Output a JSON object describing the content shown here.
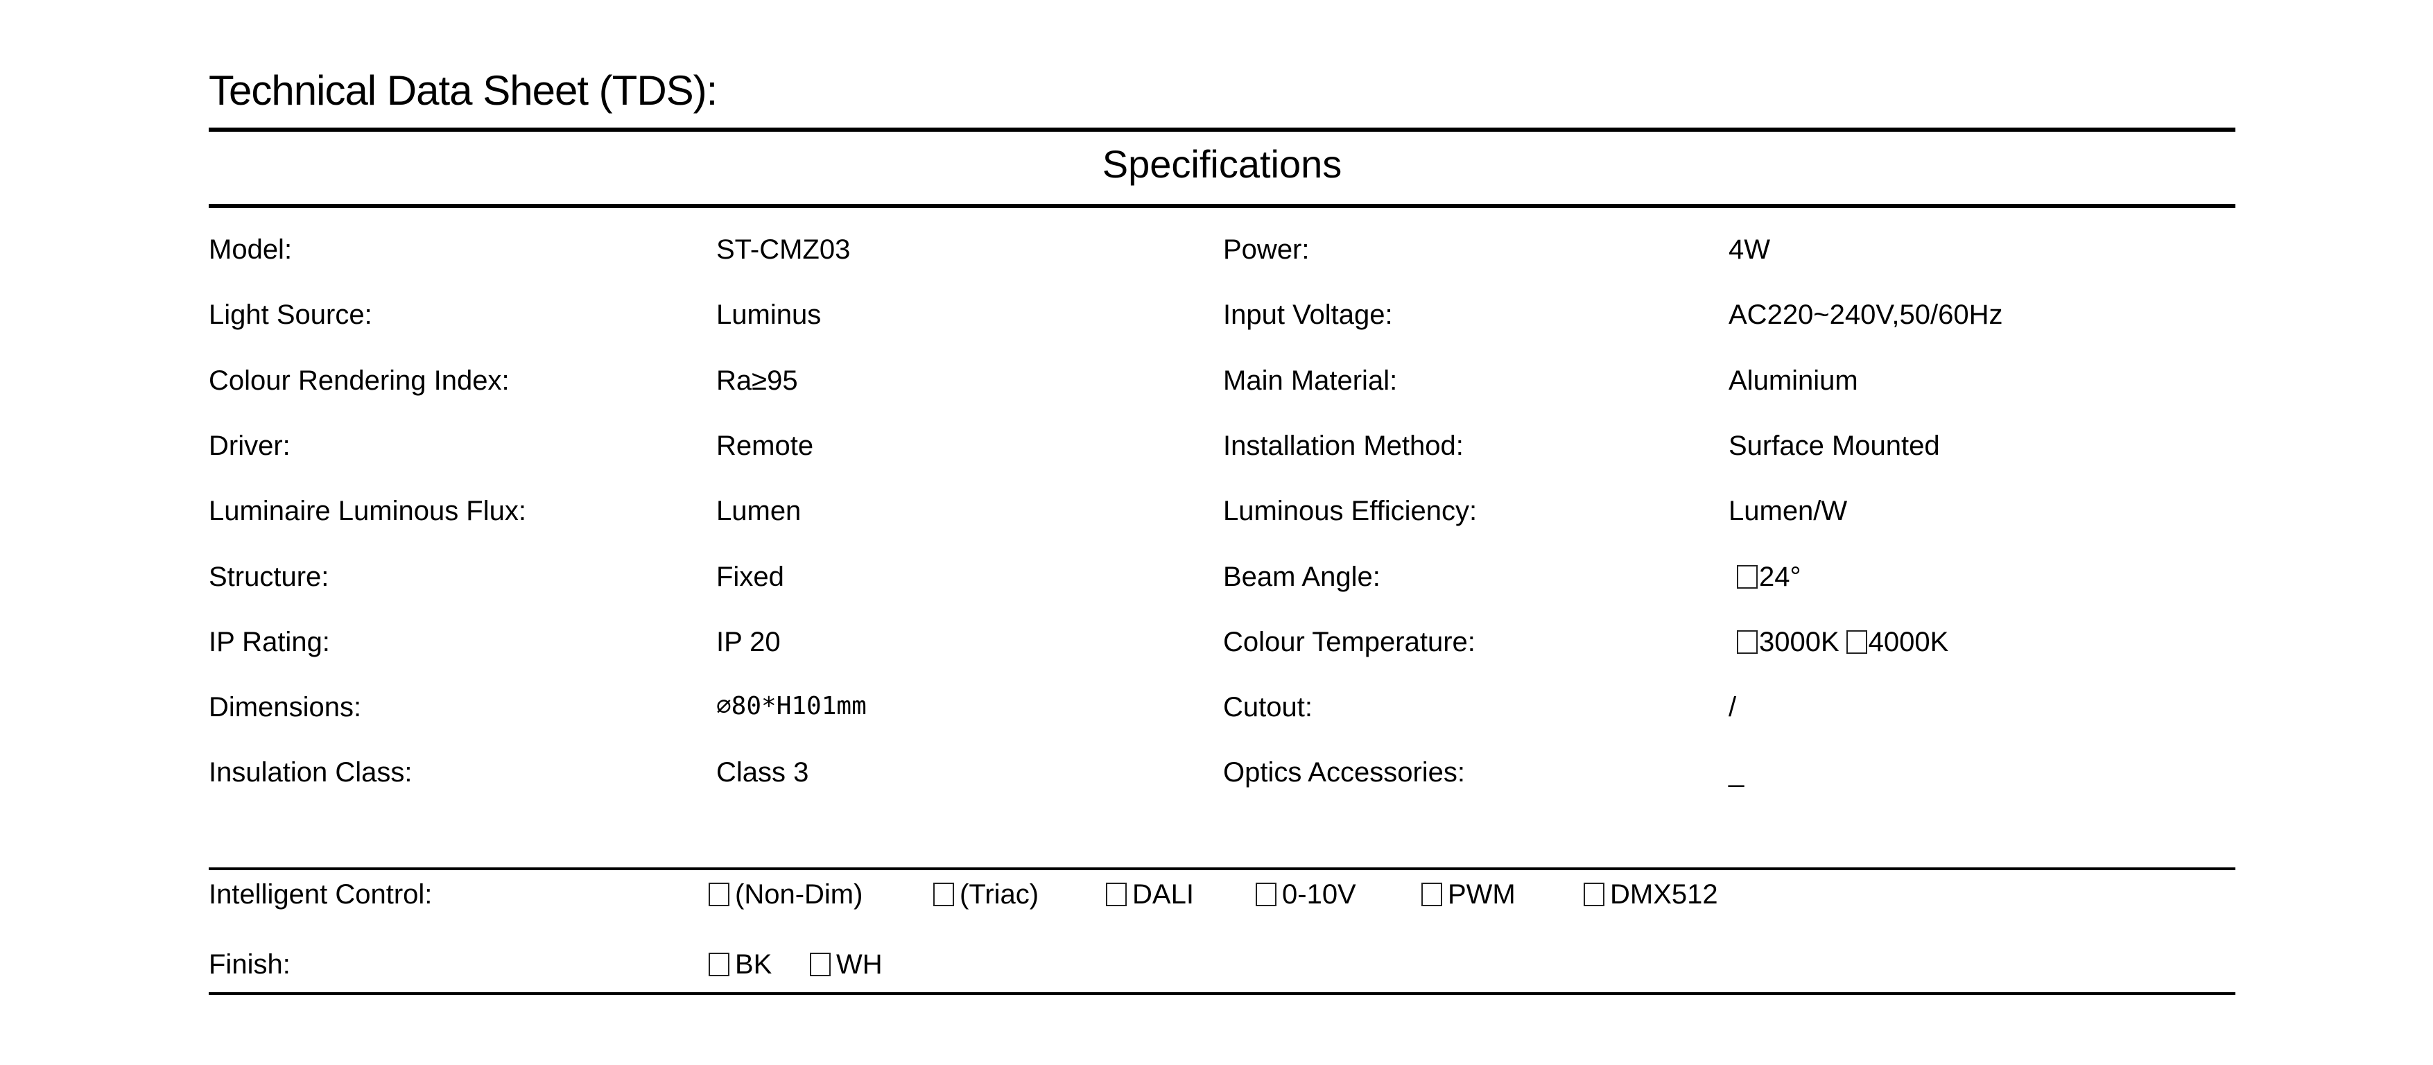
{
  "title": "Technical Data Sheet (TDS):",
  "section_heading": "Specifications",
  "specs": [
    {
      "label": "Model:",
      "value": "ST-CMZ03",
      "label2": "Power:",
      "value2": "4W"
    },
    {
      "label": "Light Source:",
      "value": "Luminus",
      "label2": "Input Voltage:",
      "value2": "AC220~240V,50/60Hz"
    },
    {
      "label": "Colour Rendering Index:",
      "value": "Ra≥95",
      "label2": "Main Material:",
      "value2": "Aluminium"
    },
    {
      "label": "Driver:",
      "value": "Remote",
      "label2": "Installation Method:",
      "value2": "Surface Mounted"
    },
    {
      "label": "Luminaire Luminous Flux:",
      "value": "Lumen",
      "label2": "Luminous Efficiency:",
      "value2": "Lumen/W"
    },
    {
      "label": "Structure:",
      "value": "Fixed",
      "label2": "Beam Angle:",
      "value2": "24°",
      "value2_checkbox": true
    },
    {
      "label": "IP Rating:",
      "value": "IP 20",
      "label2": "Colour Temperature:",
      "value2_options": [
        "3000K",
        "4000K"
      ]
    },
    {
      "label": "Dimensions:",
      "value": "∅80*H101mm",
      "label2": "Cutout:",
      "value2": "/"
    },
    {
      "label": "Insulation Class:",
      "value": "Class 3",
      "label2": "Optics Accessories:",
      "value2": "_"
    }
  ],
  "intelligent_control": {
    "label": "Intelligent Control:",
    "options": [
      "(Non-Dim)",
      "(Triac)",
      "DALI",
      "0-10V",
      "PWM",
      "DMX512"
    ]
  },
  "finish": {
    "label": "Finish:",
    "options": [
      "BK",
      "WH"
    ]
  }
}
